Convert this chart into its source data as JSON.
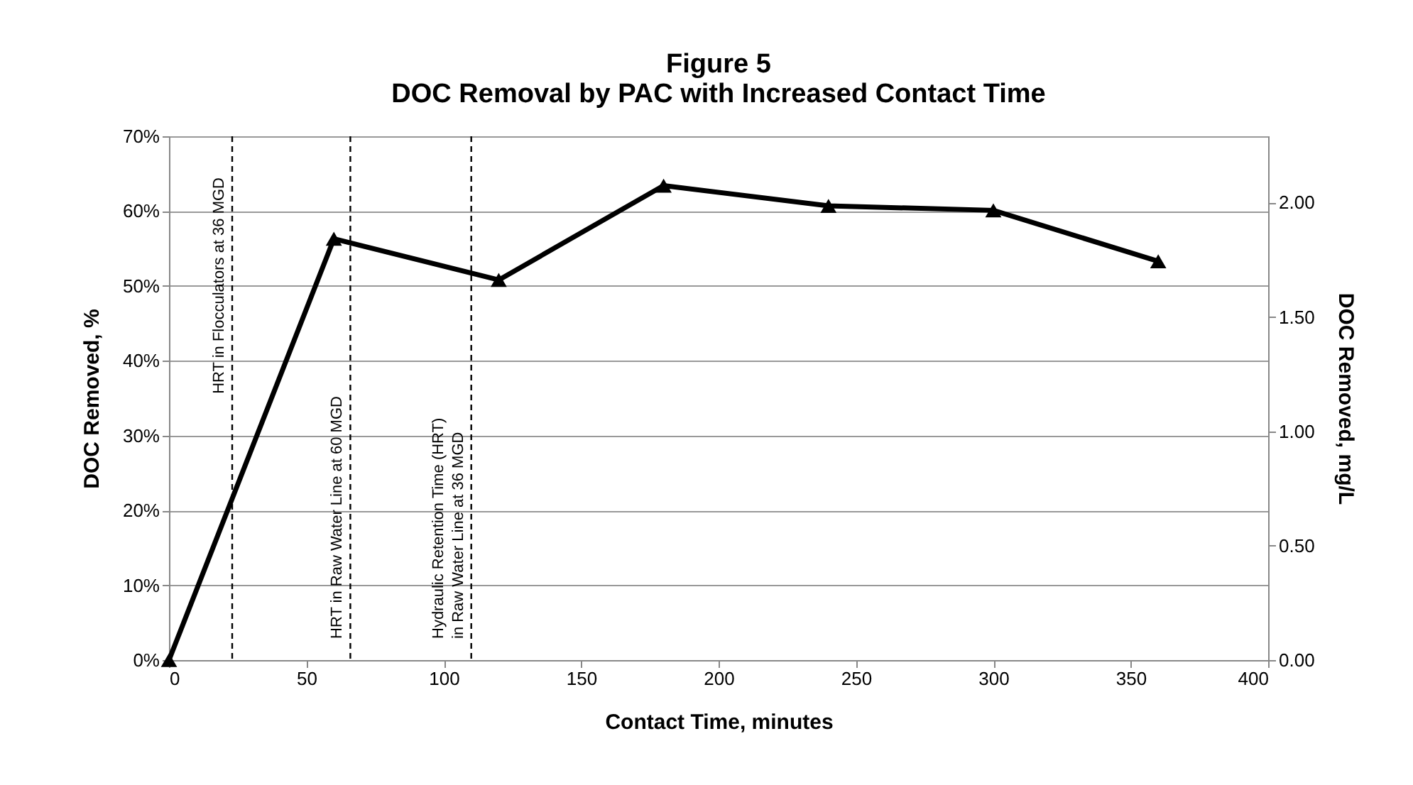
{
  "chart_data": {
    "type": "line",
    "title": "Figure 5\nDOC Removal by PAC with Increased Contact Time",
    "xlabel": "Contact Time, minutes",
    "ylabel": "DOC Removed, %",
    "y2label": "DOC Removed, mg/L",
    "x": [
      0,
      60,
      120,
      180,
      240,
      300,
      360
    ],
    "series": [
      {
        "color": "#000000",
        "values": [
          0,
          56.3,
          50.8,
          63.4,
          60.7,
          60.1,
          53.3
        ]
      }
    ],
    "xlim": [
      0,
      400
    ],
    "xticks": [
      0,
      50,
      100,
      150,
      200,
      250,
      300,
      350,
      400
    ],
    "ylim": [
      0,
      70
    ],
    "yticks": [
      {
        "value": 0,
        "label": "0%"
      },
      {
        "value": 10,
        "label": "10%"
      },
      {
        "value": 20,
        "label": "20%"
      },
      {
        "value": 30,
        "label": "30%"
      },
      {
        "value": 40,
        "label": "40%"
      },
      {
        "value": 50,
        "label": "50%"
      },
      {
        "value": 60,
        "label": "60%"
      },
      {
        "value": 70,
        "label": "70%"
      }
    ],
    "y2lim": [
      0,
      2.29
    ],
    "y2ticks": [
      {
        "value": 0,
        "label": "0.00"
      },
      {
        "value": 0.5,
        "label": "0.50"
      },
      {
        "value": 1,
        "label": "1.00"
      },
      {
        "value": 1.5,
        "label": "1.50"
      },
      {
        "value": 2,
        "label": "2.00"
      }
    ],
    "ref_lines": [
      {
        "axis": "x",
        "value": 23,
        "label": "HRT in Flocculators at 36 MGD",
        "color": "#000000",
        "line_style": "dashed"
      },
      {
        "axis": "x",
        "value": 66,
        "label": "HRT in Raw  Water Line at 60 MGD",
        "color": "#000000",
        "line_style": "dashed"
      },
      {
        "axis": "x",
        "value": 110,
        "label": "Hydraulic Retention Time (HRT)\nin Raw Water Line at 36 MGD",
        "color": "#000000",
        "line_style": "dashed"
      }
    ],
    "grid": "y",
    "marker": "triangle",
    "line_style": "solid"
  }
}
